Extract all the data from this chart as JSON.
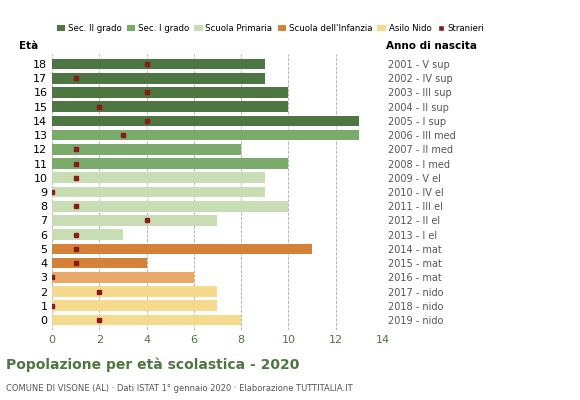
{
  "ages": [
    18,
    17,
    16,
    15,
    14,
    13,
    12,
    11,
    10,
    9,
    8,
    7,
    6,
    5,
    4,
    3,
    2,
    1,
    0
  ],
  "bar_values": [
    9,
    9,
    10,
    10,
    13,
    13,
    8,
    10,
    9,
    9,
    10,
    7,
    3,
    11,
    4,
    6,
    7,
    7,
    8
  ],
  "stranieri": [
    4,
    1,
    4,
    2,
    4,
    3,
    1,
    1,
    1,
    0,
    1,
    4,
    1,
    1,
    1,
    0,
    2,
    0,
    2
  ],
  "bar_colors": [
    "#4e7642",
    "#4e7642",
    "#4e7642",
    "#4e7642",
    "#4e7642",
    "#7aab6a",
    "#7aab6a",
    "#7aab6a",
    "#c8ddb4",
    "#c8ddb4",
    "#c8ddb4",
    "#c8ddb4",
    "#c8ddb4",
    "#d4813a",
    "#d4813a",
    "#e8a86a",
    "#f5d98c",
    "#f5d98c",
    "#f5d98c"
  ],
  "anno_labels": [
    "2001 - V sup",
    "2002 - IV sup",
    "2003 - III sup",
    "2004 - II sup",
    "2005 - I sup",
    "2006 - III med",
    "2007 - II med",
    "2008 - I med",
    "2009 - V el",
    "2010 - IV el",
    "2011 - III el",
    "2012 - II el",
    "2013 - I el",
    "2014 - mat",
    "2015 - mat",
    "2016 - mat",
    "2017 - nido",
    "2018 - nido",
    "2019 - nido"
  ],
  "legend_labels": [
    "Sec. II grado",
    "Sec. I grado",
    "Scuola Primaria",
    "Scuola dell'Infanzia",
    "Asilo Nido",
    "Stranieri"
  ],
  "legend_colors": [
    "#4e7642",
    "#7aab6a",
    "#c8ddb4",
    "#d4813a",
    "#f5d98c",
    "#8b1a1a"
  ],
  "title": "Popolazione per età scolastica - 2020",
  "subtitle": "COMUNE DI VISONE (AL) · Dati ISTAT 1° gennaio 2020 · Elaborazione TUTTITALIA.IT",
  "xlabel_eta": "Età",
  "xlabel_anno": "Anno di nascita",
  "title_color": "#4e7642",
  "subtitle_color": "#555555",
  "xlim": [
    0,
    14
  ],
  "xticks": [
    0,
    2,
    4,
    6,
    8,
    10,
    12,
    14
  ],
  "stranieri_color": "#8b1a1a",
  "grid_color": "#aaaaaa",
  "bg_color": "#ffffff"
}
